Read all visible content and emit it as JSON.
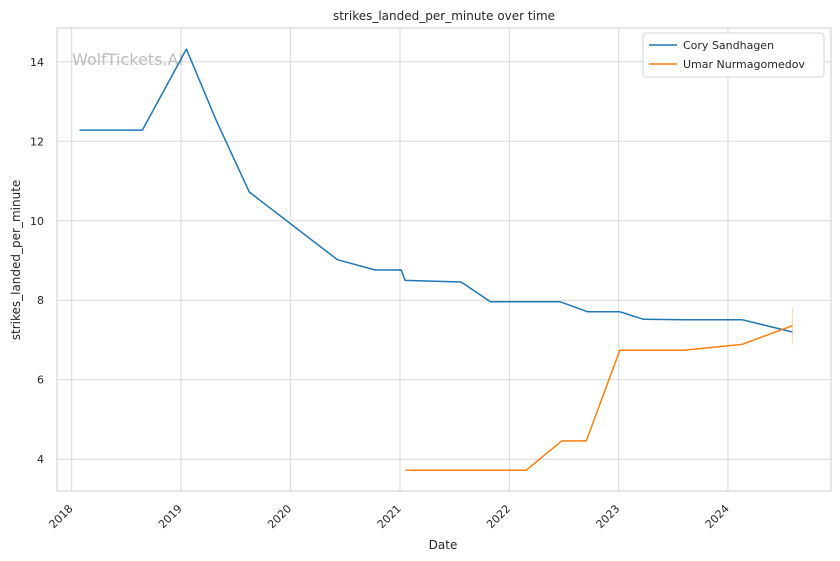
{
  "chart_data": {
    "type": "line",
    "title": "strikes_landed_per_minute over time",
    "xlabel": "Date",
    "ylabel": "strikes_landed_per_minute",
    "watermark": "WolfTickets.AI",
    "xlim": [
      "2017-11-13",
      "2024-12-10"
    ],
    "ylim": [
      3.2,
      14.85
    ],
    "x_ticks": [
      "2018",
      "2019",
      "2020",
      "2021",
      "2022",
      "2023",
      "2024"
    ],
    "y_ticks": [
      4,
      6,
      8,
      10,
      12,
      14
    ],
    "grid": true,
    "legend_position": "top-right",
    "series": [
      {
        "name": "Cory Sandhagen",
        "color": "#1f77b4",
        "points": [
          [
            "2018-01-27",
            12.28
          ],
          [
            "2018-08-25",
            12.28
          ],
          [
            "2019-01-19",
            14.32
          ],
          [
            "2019-04-27",
            12.55
          ],
          [
            "2019-08-17",
            10.72
          ],
          [
            "2020-06-06",
            9.02
          ],
          [
            "2020-10-10",
            8.76
          ],
          [
            "2021-01-05",
            8.76
          ],
          [
            "2021-01-18",
            8.5
          ],
          [
            "2021-07-24",
            8.46
          ],
          [
            "2021-10-30",
            7.96
          ],
          [
            "2022-06-20",
            7.96
          ],
          [
            "2022-09-20",
            7.71
          ],
          [
            "2023-01-05",
            7.71
          ],
          [
            "2023-03-25",
            7.52
          ],
          [
            "2023-08-05",
            7.51
          ],
          [
            "2024-02-17",
            7.51
          ],
          [
            "2024-08-03",
            7.2
          ]
        ]
      },
      {
        "name": "Umar Nurmagomedov",
        "color": "#ff7f0e",
        "points": [
          [
            "2021-01-20",
            3.72
          ],
          [
            "2022-02-26",
            3.72
          ],
          [
            "2022-06-25",
            4.46
          ],
          [
            "2022-09-15",
            4.46
          ],
          [
            "2023-01-05",
            6.74
          ],
          [
            "2023-08-05",
            6.74
          ],
          [
            "2024-02-17",
            6.89
          ],
          [
            "2024-08-03",
            7.36
          ]
        ],
        "error_bar": {
          "x": "2024-08-03",
          "low": 6.88,
          "high": 7.82
        }
      }
    ]
  }
}
